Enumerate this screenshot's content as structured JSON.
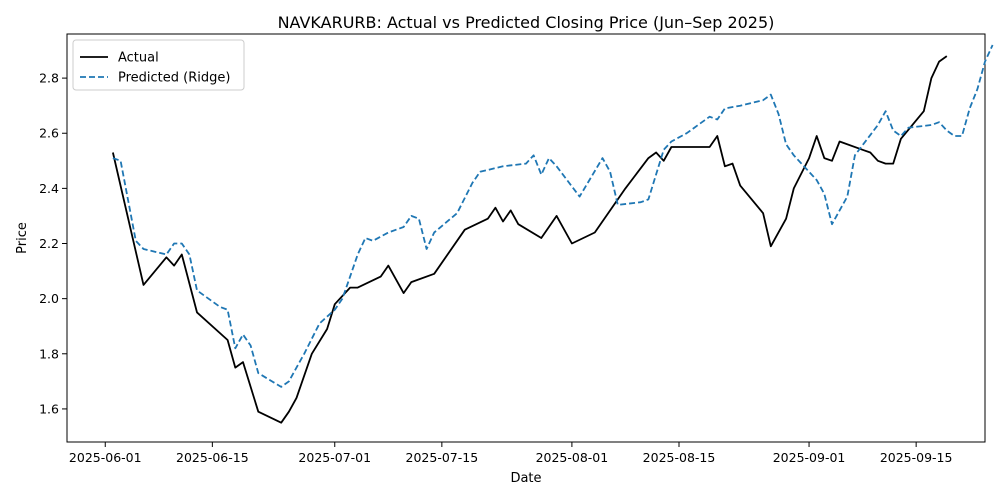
{
  "chart_data": {
    "type": "line",
    "title": "NAVKARURB: Actual vs Predicted Closing Price (Jun–Sep 2025)",
    "xlabel": "Date",
    "ylabel": "Price",
    "xlim": [
      "2025-05-27",
      "2025-09-24"
    ],
    "ylim": [
      1.48,
      2.96
    ],
    "x_ticks": [
      "2025-06-01",
      "2025-06-15",
      "2025-07-01",
      "2025-07-15",
      "2025-08-01",
      "2025-08-15",
      "2025-09-01",
      "2025-09-15"
    ],
    "y_ticks": [
      "1.6",
      "1.8",
      "2.0",
      "2.2",
      "2.4",
      "2.6",
      "2.8"
    ],
    "grid": false,
    "legend_position": "upper-left",
    "series": [
      {
        "name": "Actual",
        "color": "#000000",
        "style": "solid",
        "points": [
          [
            "2025-06-02",
            2.53
          ],
          [
            "2025-06-06",
            2.05
          ],
          [
            "2025-06-09",
            2.15
          ],
          [
            "2025-06-10",
            2.12
          ],
          [
            "2025-06-11",
            2.16
          ],
          [
            "2025-06-13",
            1.95
          ],
          [
            "2025-06-17",
            1.85
          ],
          [
            "2025-06-18",
            1.75
          ],
          [
            "2025-06-19",
            1.77
          ],
          [
            "2025-06-21",
            1.59
          ],
          [
            "2025-06-24",
            1.55
          ],
          [
            "2025-06-25",
            1.59
          ],
          [
            "2025-06-26",
            1.64
          ],
          [
            "2025-06-28",
            1.8
          ],
          [
            "2025-06-30",
            1.89
          ],
          [
            "2025-07-01",
            1.98
          ],
          [
            "2025-07-03",
            2.04
          ],
          [
            "2025-07-04",
            2.04
          ],
          [
            "2025-07-07",
            2.08
          ],
          [
            "2025-07-08",
            2.12
          ],
          [
            "2025-07-10",
            2.02
          ],
          [
            "2025-07-11",
            2.06
          ],
          [
            "2025-07-14",
            2.09
          ],
          [
            "2025-07-18",
            2.25
          ],
          [
            "2025-07-21",
            2.29
          ],
          [
            "2025-07-22",
            2.33
          ],
          [
            "2025-07-23",
            2.28
          ],
          [
            "2025-07-24",
            2.32
          ],
          [
            "2025-07-25",
            2.27
          ],
          [
            "2025-07-28",
            2.22
          ],
          [
            "2025-07-30",
            2.3
          ],
          [
            "2025-08-01",
            2.2
          ],
          [
            "2025-08-04",
            2.24
          ],
          [
            "2025-08-08",
            2.4
          ],
          [
            "2025-08-11",
            2.51
          ],
          [
            "2025-08-12",
            2.53
          ],
          [
            "2025-08-13",
            2.5
          ],
          [
            "2025-08-14",
            2.55
          ],
          [
            "2025-08-18",
            2.55
          ],
          [
            "2025-08-19",
            2.55
          ],
          [
            "2025-08-20",
            2.59
          ],
          [
            "2025-08-21",
            2.48
          ],
          [
            "2025-08-22",
            2.49
          ],
          [
            "2025-08-23",
            2.41
          ],
          [
            "2025-08-26",
            2.31
          ],
          [
            "2025-08-27",
            2.19
          ],
          [
            "2025-08-29",
            2.29
          ],
          [
            "2025-08-30",
            2.4
          ],
          [
            "2025-09-01",
            2.51
          ],
          [
            "2025-09-02",
            2.59
          ],
          [
            "2025-09-03",
            2.51
          ],
          [
            "2025-09-04",
            2.5
          ],
          [
            "2025-09-05",
            2.57
          ],
          [
            "2025-09-08",
            2.54
          ],
          [
            "2025-09-09",
            2.53
          ],
          [
            "2025-09-10",
            2.5
          ],
          [
            "2025-09-11",
            2.49
          ],
          [
            "2025-09-12",
            2.49
          ],
          [
            "2025-09-13",
            2.58
          ],
          [
            "2025-09-16",
            2.68
          ],
          [
            "2025-09-17",
            2.8
          ],
          [
            "2025-09-18",
            2.86
          ],
          [
            "2025-09-19",
            2.88
          ]
        ]
      },
      {
        "name": "Predicted (Ridge)",
        "color": "#1f77b4",
        "style": "dashed",
        "points": [
          [
            "2025-06-02",
            2.51
          ],
          [
            "2025-06-03",
            2.5
          ],
          [
            "2025-06-05",
            2.21
          ],
          [
            "2025-06-06",
            2.18
          ],
          [
            "2025-06-09",
            2.16
          ],
          [
            "2025-06-10",
            2.2
          ],
          [
            "2025-06-11",
            2.2
          ],
          [
            "2025-06-12",
            2.16
          ],
          [
            "2025-06-13",
            2.03
          ],
          [
            "2025-06-16",
            1.97
          ],
          [
            "2025-06-17",
            1.96
          ],
          [
            "2025-06-18",
            1.82
          ],
          [
            "2025-06-19",
            1.87
          ],
          [
            "2025-06-20",
            1.83
          ],
          [
            "2025-06-21",
            1.73
          ],
          [
            "2025-06-24",
            1.68
          ],
          [
            "2025-06-25",
            1.7
          ],
          [
            "2025-06-26",
            1.75
          ],
          [
            "2025-06-27",
            1.8
          ],
          [
            "2025-06-29",
            1.91
          ],
          [
            "2025-07-01",
            1.96
          ],
          [
            "2025-07-02",
            2.0
          ],
          [
            "2025-07-03",
            2.08
          ],
          [
            "2025-07-04",
            2.16
          ],
          [
            "2025-07-05",
            2.22
          ],
          [
            "2025-07-06",
            2.21
          ],
          [
            "2025-07-08",
            2.24
          ],
          [
            "2025-07-10",
            2.26
          ],
          [
            "2025-07-11",
            2.3
          ],
          [
            "2025-07-12",
            2.29
          ],
          [
            "2025-07-13",
            2.18
          ],
          [
            "2025-07-14",
            2.24
          ],
          [
            "2025-07-17",
            2.31
          ],
          [
            "2025-07-19",
            2.42
          ],
          [
            "2025-07-20",
            2.46
          ],
          [
            "2025-07-23",
            2.48
          ],
          [
            "2025-07-26",
            2.49
          ],
          [
            "2025-07-27",
            2.52
          ],
          [
            "2025-07-28",
            2.45
          ],
          [
            "2025-07-29",
            2.51
          ],
          [
            "2025-07-30",
            2.48
          ],
          [
            "2025-08-02",
            2.37
          ],
          [
            "2025-08-05",
            2.51
          ],
          [
            "2025-08-06",
            2.46
          ],
          [
            "2025-08-07",
            2.34
          ],
          [
            "2025-08-10",
            2.35
          ],
          [
            "2025-08-11",
            2.36
          ],
          [
            "2025-08-13",
            2.54
          ],
          [
            "2025-08-14",
            2.57
          ],
          [
            "2025-08-16",
            2.6
          ],
          [
            "2025-08-19",
            2.66
          ],
          [
            "2025-08-20",
            2.65
          ],
          [
            "2025-08-21",
            2.69
          ],
          [
            "2025-08-23",
            2.7
          ],
          [
            "2025-08-26",
            2.72
          ],
          [
            "2025-08-27",
            2.74
          ],
          [
            "2025-08-28",
            2.67
          ],
          [
            "2025-08-29",
            2.56
          ],
          [
            "2025-08-30",
            2.52
          ],
          [
            "2025-09-02",
            2.43
          ],
          [
            "2025-09-03",
            2.38
          ],
          [
            "2025-09-04",
            2.27
          ],
          [
            "2025-09-06",
            2.37
          ],
          [
            "2025-09-07",
            2.52
          ],
          [
            "2025-09-10",
            2.63
          ],
          [
            "2025-09-11",
            2.68
          ],
          [
            "2025-09-12",
            2.61
          ],
          [
            "2025-09-13",
            2.59
          ],
          [
            "2025-09-14",
            2.62
          ],
          [
            "2025-09-17",
            2.63
          ],
          [
            "2025-09-18",
            2.64
          ],
          [
            "2025-09-19",
            2.61
          ],
          [
            "2025-09-20",
            2.59
          ],
          [
            "2025-09-21",
            2.59
          ],
          [
            "2025-09-22",
            2.69
          ],
          [
            "2025-09-23",
            2.76
          ],
          [
            "2025-09-24",
            2.86
          ],
          [
            "2025-09-25",
            2.92
          ]
        ]
      }
    ]
  }
}
